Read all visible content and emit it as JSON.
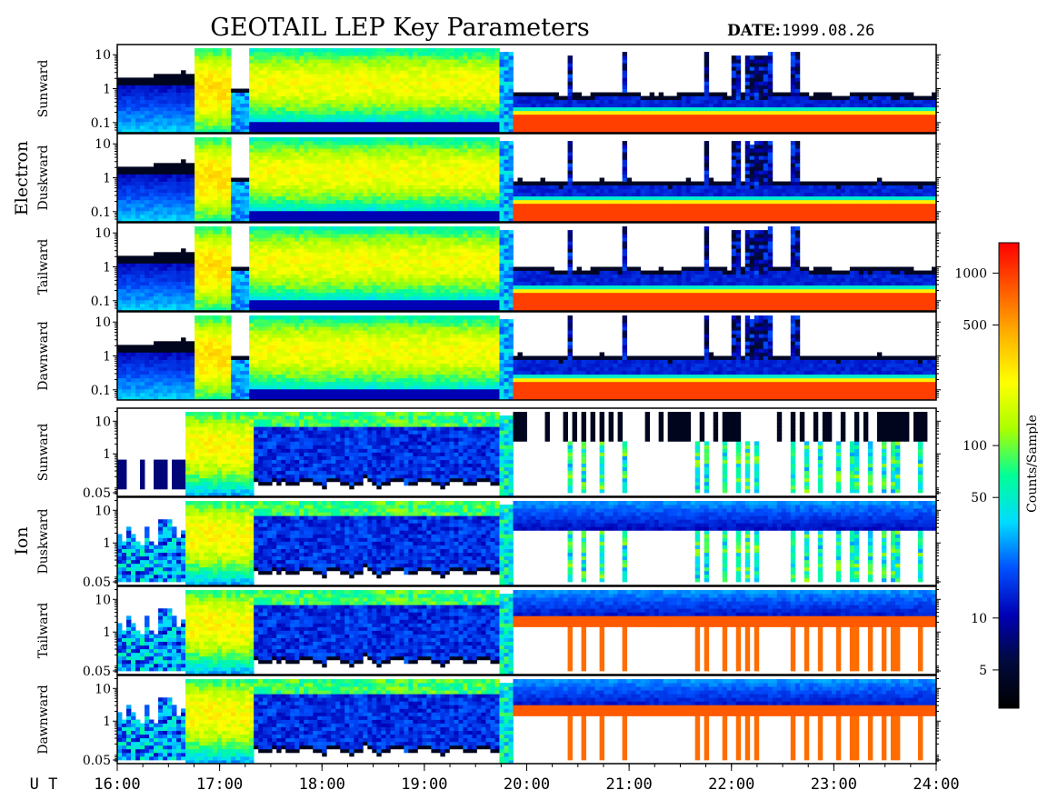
{
  "header": {
    "title": "GEOTAIL LEP Key Parameters",
    "date_label": "DATE:",
    "date_value": "1999.08.26"
  },
  "groups": {
    "electron": "Electron",
    "ion": "Ion"
  },
  "colorbar": {
    "label": "Counts/Sample",
    "scale": "log",
    "range": [
      3,
      1500
    ],
    "ticks": [
      "1000",
      "500",
      "100",
      "50",
      "10",
      "5"
    ],
    "tick_values": [
      1000,
      500,
      100,
      50,
      10,
      5
    ],
    "colors": [
      "#000000",
      "#000a3c",
      "#0000b4",
      "#0050ff",
      "#00dcff",
      "#00ff96",
      "#aaff00",
      "#ffff00",
      "#ffb400",
      "#ff5a00",
      "#ff0000"
    ]
  },
  "time_axis": {
    "label": "U T",
    "ticks": [
      "16:00",
      "17:00",
      "18:00",
      "19:00",
      "20:00",
      "21:00",
      "22:00",
      "23:00",
      "24:00"
    ]
  },
  "chart_data": {
    "type": "heatmap",
    "title": "GEOTAIL LEP Key Parameters",
    "x_range_hours": [
      16,
      24
    ],
    "y_scale": "log",
    "z_label": "Counts/Sample",
    "z_scale": "log",
    "panels": [
      {
        "species": "Electron",
        "direction": "Sunward",
        "ylim": [
          0.05,
          20
        ],
        "yticks": [
          "10",
          "1",
          "0.1"
        ],
        "ytick_values": [
          10,
          1,
          0.1
        ]
      },
      {
        "species": "Electron",
        "direction": "Duskward",
        "ylim": [
          0.05,
          20
        ],
        "yticks": [
          "10",
          "1",
          "0.1"
        ],
        "ytick_values": [
          10,
          1,
          0.1
        ]
      },
      {
        "species": "Electron",
        "direction": "Tailward",
        "ylim": [
          0.05,
          20
        ],
        "yticks": [
          "10",
          "1",
          "0.1"
        ],
        "ytick_values": [
          10,
          1,
          0.1
        ]
      },
      {
        "species": "Electron",
        "direction": "Dawnward",
        "ylim": [
          0.05,
          20
        ],
        "yticks": [
          "10",
          "1",
          "0.1"
        ],
        "ytick_values": [
          10,
          1,
          0.1
        ]
      },
      {
        "species": "Ion",
        "direction": "Sunward",
        "ylim": [
          0.05,
          25
        ],
        "yticks": [
          "10",
          "1",
          "0.05"
        ],
        "ytick_values": [
          10,
          1,
          0.05
        ]
      },
      {
        "species": "Ion",
        "direction": "Duskward",
        "ylim": [
          0.05,
          25
        ],
        "yticks": [
          "10",
          "1",
          "0.05"
        ],
        "ytick_values": [
          10,
          1,
          0.05
        ]
      },
      {
        "species": "Ion",
        "direction": "Tailward",
        "ylim": [
          0.05,
          25
        ],
        "yticks": [
          "10",
          "1",
          "0.05"
        ],
        "ytick_values": [
          10,
          1,
          0.05
        ]
      },
      {
        "species": "Ion",
        "direction": "Dawnward",
        "ylim": [
          0.05,
          25
        ],
        "yticks": [
          "10",
          "1",
          "0.05"
        ],
        "ytick_values": [
          10,
          1,
          0.05
        ]
      }
    ]
  }
}
